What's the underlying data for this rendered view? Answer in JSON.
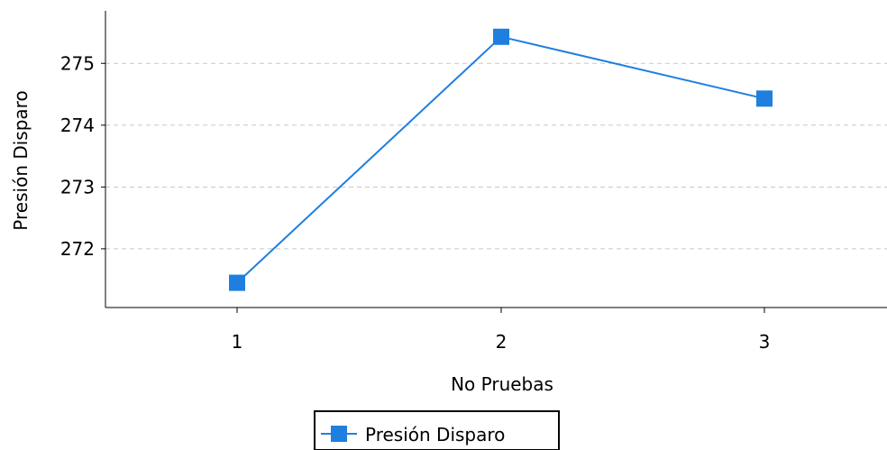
{
  "chart_data": {
    "type": "line",
    "title": "",
    "xlabel": "No Pruebas",
    "ylabel": "Presión Disparo",
    "categories": [
      "1",
      "2",
      "3"
    ],
    "series": [
      {
        "name": "Presión Disparo",
        "values": [
          271.45,
          275.43,
          274.43
        ],
        "color": "#1f7fdf",
        "marker": "square"
      }
    ],
    "ylim": [
      271.05,
      275.85
    ],
    "yticks": [
      "272",
      "273",
      "274",
      "275"
    ],
    "grid": "horizontal-dashed",
    "legend_position": "bottom-center"
  }
}
